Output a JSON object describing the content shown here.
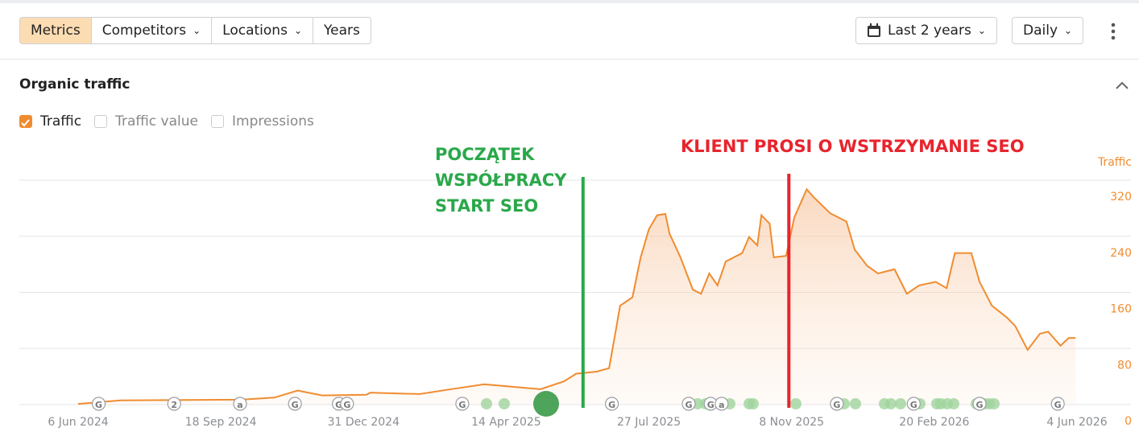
{
  "toolbar": {
    "tabs": [
      "Metrics",
      "Competitors",
      "Locations",
      "Years"
    ],
    "date_range": "Last 2 years",
    "granularity": "Daily"
  },
  "section": {
    "title": "Organic traffic",
    "checkboxes": [
      {
        "label": "Traffic",
        "checked": true
      },
      {
        "label": "Traffic value",
        "checked": false
      },
      {
        "label": "Impressions",
        "checked": false
      }
    ]
  },
  "chart_data": {
    "type": "area",
    "y_axis_label": "Traffic",
    "grid": true,
    "xlim": [
      "2024-06-06",
      "2026-06-04"
    ],
    "ylim": [
      0,
      320
    ],
    "xticks": [
      {
        "value": "2024-06-06",
        "label": "6 Jun 2024"
      },
      {
        "value": "2024-09-18",
        "label": "18 Sep 2024"
      },
      {
        "value": "2024-12-31",
        "label": "31 Dec 2024"
      },
      {
        "value": "2025-04-14",
        "label": "14 Apr 2025"
      },
      {
        "value": "2025-07-27",
        "label": "27 Jul 2025"
      },
      {
        "value": "2025-11-08",
        "label": "8 Nov 2025"
      },
      {
        "value": "2026-02-20",
        "label": "20 Feb 2026"
      },
      {
        "value": "2026-06-04",
        "label": "4 Jun 2026"
      }
    ],
    "yticks": [
      0,
      80,
      160,
      240,
      320
    ],
    "x": [
      "2024-06-06",
      "2024-07-07",
      "2024-10-03",
      "2024-10-27",
      "2024-11-13",
      "2024-12-01",
      "2025-01-02",
      "2025-01-05",
      "2025-02-10",
      "2025-03-05",
      "2025-03-29",
      "2025-04-21",
      "2025-05-09",
      "2025-05-26",
      "2025-06-04",
      "2025-06-19",
      "2025-06-28",
      "2025-07-03",
      "2025-07-06",
      "2025-07-15",
      "2025-07-21",
      "2025-07-27",
      "2025-08-02",
      "2025-08-08",
      "2025-08-11",
      "2025-08-19",
      "2025-08-28",
      "2025-09-03",
      "2025-09-09",
      "2025-09-15",
      "2025-09-21",
      "2025-10-03",
      "2025-10-08",
      "2025-10-14",
      "2025-10-17",
      "2025-10-23",
      "2025-10-26",
      "2025-11-04",
      "2025-11-10",
      "2025-11-19",
      "2025-11-24",
      "2025-12-06",
      "2025-12-18",
      "2025-12-24",
      "2026-01-02",
      "2026-01-10",
      "2026-01-22",
      "2026-01-31",
      "2026-02-09",
      "2026-02-21",
      "2026-03-01",
      "2026-03-07",
      "2026-03-19",
      "2026-03-25",
      "2026-04-03",
      "2026-04-14",
      "2026-04-20",
      "2026-04-29",
      "2026-05-08",
      "2026-05-14",
      "2026-05-23",
      "2026-05-29",
      "2026-06-03"
    ],
    "series": [
      {
        "name": "Traffic",
        "color": "#f08c30",
        "values": [
          1,
          6,
          7,
          10,
          20,
          13,
          14,
          17,
          15,
          22,
          29,
          25,
          22,
          33,
          44,
          47,
          52,
          107,
          141,
          153,
          210,
          250,
          270,
          272,
          244,
          210,
          164,
          158,
          187,
          170,
          204,
          216,
          239,
          227,
          270,
          258,
          210,
          212,
          267,
          307,
          296,
          273,
          261,
          221,
          198,
          187,
          193,
          158,
          170,
          175,
          166,
          216,
          216,
          175,
          141,
          124,
          112,
          78,
          101,
          104,
          84,
          95,
          95
        ]
      }
    ],
    "annotations": [
      {
        "x": "2025-06-09",
        "color": "#2aa84a",
        "lines": [
          "POCZĄTEK",
          "WSPÓŁPRACY",
          "START SEO"
        ]
      },
      {
        "x": "2025-11-06",
        "color": "#e8242d",
        "lines": [
          "KLIENT PROSI O WSTRZYMANIE SEO"
        ]
      }
    ],
    "events": [
      {
        "x": "2024-06-21",
        "label": "G"
      },
      {
        "x": "2024-08-15",
        "label": "2"
      },
      {
        "x": "2024-10-02",
        "label": "a"
      },
      {
        "x": "2024-11-11",
        "label": "G"
      },
      {
        "x": "2024-12-13",
        "label": "G"
      },
      {
        "x": "2024-12-19",
        "label": "G"
      },
      {
        "x": "2025-03-13",
        "label": "G"
      },
      {
        "x": "2025-06-30",
        "label": "G"
      },
      {
        "x": "2025-08-25",
        "label": "G"
      },
      {
        "x": "2025-09-10",
        "label": "G"
      },
      {
        "x": "2025-09-18",
        "label": "a"
      },
      {
        "x": "2025-12-11",
        "label": "G"
      },
      {
        "x": "2026-02-05",
        "label": "G"
      },
      {
        "x": "2026-03-25",
        "label": "G"
      },
      {
        "x": "2026-05-21",
        "label": "G"
      }
    ]
  }
}
